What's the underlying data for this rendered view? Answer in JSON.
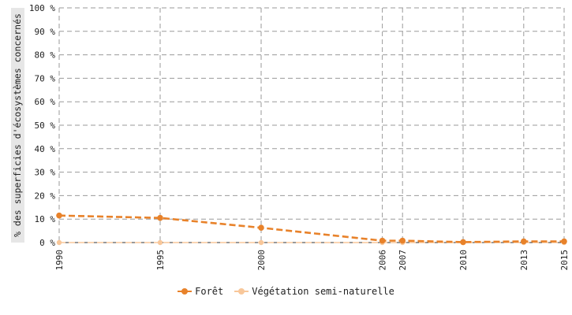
{
  "chart_data": {
    "type": "line",
    "title": "",
    "xlabel": "",
    "ylabel": "% des superficies d'écosystèmes concernés",
    "ylim": [
      0,
      100
    ],
    "yticks": [
      "0 %",
      "10 %",
      "20 %",
      "30 %",
      "40 %",
      "50 %",
      "60 %",
      "70 %",
      "80 %",
      "90 %",
      "100 %"
    ],
    "x": [
      1990,
      1995,
      2000,
      2006,
      2007,
      2010,
      2013,
      2015
    ],
    "grid": true,
    "legend_position": "bottom",
    "series": [
      {
        "name": "Forêt",
        "color": "#e8822a",
        "values": [
          11.5,
          10.5,
          6.3,
          0.8,
          0.8,
          0.2,
          0.5,
          0.5
        ]
      },
      {
        "name": "Végétation semi-naturelle",
        "color": "#f8c79a",
        "values": [
          0,
          0,
          0,
          0,
          0,
          0,
          0,
          0
        ]
      }
    ]
  }
}
